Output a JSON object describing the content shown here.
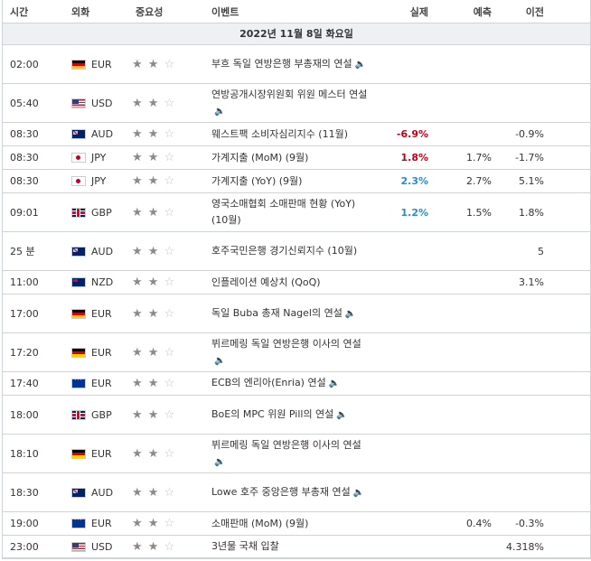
{
  "header": {
    "time": "시간",
    "currency": "외화",
    "importance": "중요성",
    "event": "이벤트",
    "actual": "실제",
    "forecast": "예측",
    "previous": "이전"
  },
  "date_row": "2022년 11월 8일 화요일",
  "speaker_icon": "speaker-icon",
  "rows": [
    {
      "time": "02:00",
      "flag": "de",
      "cur": "EUR",
      "stars": 2,
      "event": "부흐 독일 연방은행 부총재의 연설",
      "speaker": true,
      "actual": "",
      "forecast": "",
      "previous": "",
      "h": "h2"
    },
    {
      "time": "05:40",
      "flag": "us",
      "cur": "USD",
      "stars": 2,
      "event": "연방공개시장위원회 위원 메스터 연설",
      "speaker": true,
      "actual": "",
      "forecast": "",
      "previous": "",
      "h": "h2"
    },
    {
      "time": "08:30",
      "flag": "au",
      "cur": "AUD",
      "stars": 2,
      "event": "웨스트팩 소비자심리지수 (11월)",
      "speaker": false,
      "actual": "-6.9%",
      "actual_style": "neg",
      "forecast": "",
      "previous": "-0.9%",
      "h": "h1"
    },
    {
      "time": "08:30",
      "flag": "jp",
      "cur": "JPY",
      "stars": 2,
      "event": "가계지출 (MoM) (9월)",
      "speaker": false,
      "actual": "1.8%",
      "actual_style": "pos",
      "forecast": "1.7%",
      "previous": "-1.7%",
      "h": "h1"
    },
    {
      "time": "08:30",
      "flag": "jp",
      "cur": "JPY",
      "stars": 2,
      "event": "가계지출 (YoY) (9월)",
      "speaker": false,
      "actual": "2.3%",
      "actual_style": "blue",
      "forecast": "2.7%",
      "previous": "5.1%",
      "h": "h1"
    },
    {
      "time": "09:01",
      "flag": "gb",
      "cur": "GBP",
      "stars": 2,
      "event": "영국소매협회 소매판매 현황 (YoY) (10월)",
      "speaker": false,
      "actual": "1.2%",
      "actual_style": "blue",
      "forecast": "1.5%",
      "previous": "1.8%",
      "h": "h2"
    },
    {
      "time": "25 분",
      "flag": "au",
      "cur": "AUD",
      "stars": 2,
      "event": "호주국민은행 경기신뢰지수 (10월)",
      "speaker": false,
      "actual": "",
      "forecast": "",
      "previous": "5",
      "h": "h2"
    },
    {
      "time": "11:00",
      "flag": "nz",
      "cur": "NZD",
      "stars": 2,
      "event": "인플레이션 예상치 (QoQ)",
      "speaker": false,
      "actual": "",
      "forecast": "",
      "previous": "3.1%",
      "h": "h1"
    },
    {
      "time": "17:00",
      "flag": "de",
      "cur": "EUR",
      "stars": 2,
      "event": "독일 Buba 총재 Nagel의 연설",
      "speaker": true,
      "actual": "",
      "forecast": "",
      "previous": "",
      "h": "h2"
    },
    {
      "time": "17:20",
      "flag": "de",
      "cur": "EUR",
      "stars": 2,
      "event": "뷔르메링 독일 연방은행 이사의 연설",
      "speaker": true,
      "actual": "",
      "forecast": "",
      "previous": "",
      "h": "h2"
    },
    {
      "time": "17:40",
      "flag": "eu",
      "cur": "EUR",
      "stars": 2,
      "event": "ECB의 엔리아(Enria) 연설",
      "speaker": true,
      "actual": "",
      "forecast": "",
      "previous": "",
      "h": "h1"
    },
    {
      "time": "18:00",
      "flag": "gb",
      "cur": "GBP",
      "stars": 2,
      "event": "BoE의 MPC 위원 Pill의 연설",
      "speaker": true,
      "actual": "",
      "forecast": "",
      "previous": "",
      "h": "h2"
    },
    {
      "time": "18:10",
      "flag": "de",
      "cur": "EUR",
      "stars": 2,
      "event": "뷔르메링 독일 연방은행 이사의 연설",
      "speaker": true,
      "actual": "",
      "forecast": "",
      "previous": "",
      "h": "h2"
    },
    {
      "time": "18:30",
      "flag": "au",
      "cur": "AUD",
      "stars": 2,
      "event": "Lowe 호주 중앙은행 부총재 연설",
      "speaker": true,
      "actual": "",
      "forecast": "",
      "previous": "",
      "h": "h2"
    },
    {
      "time": "19:00",
      "flag": "eu",
      "cur": "EUR",
      "stars": 2,
      "event": "소매판매 (MoM) (9월)",
      "speaker": false,
      "actual": "",
      "forecast": "0.4%",
      "previous": "-0.3%",
      "h": "h1"
    },
    {
      "time": "23:00",
      "flag": "us",
      "cur": "USD",
      "stars": 2,
      "event": "3년물 국채 입찰",
      "speaker": false,
      "actual": "",
      "forecast": "",
      "previous": "4.318%",
      "h": "h1s"
    }
  ]
}
